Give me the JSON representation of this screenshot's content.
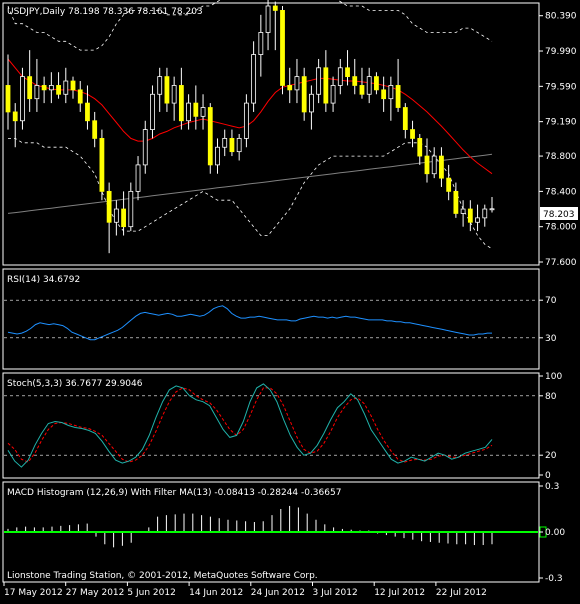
{
  "chart_data": [
    {
      "type": "candlestick",
      "title": "USDJPY,Daily  78.198 78.336 78.161 78.203",
      "symbol": "USDJPY",
      "timeframe": "Daily",
      "ohlc_header": [
        78.198,
        78.336,
        78.161,
        78.203
      ],
      "y_ticks": [
        "80.390",
        "79.990",
        "79.590",
        "79.190",
        "78.800",
        "78.400",
        "78.000",
        "77.600"
      ],
      "ylim": [
        77.6,
        80.5
      ],
      "last_price": "78.203",
      "candles": [
        [
          79.6,
          79.95,
          79.1,
          79.3
        ],
        [
          79.3,
          79.4,
          78.9,
          79.2
        ],
        [
          79.2,
          79.8,
          79.1,
          79.7
        ],
        [
          79.7,
          80.0,
          79.3,
          79.45
        ],
        [
          79.45,
          79.9,
          79.3,
          79.6
        ],
        [
          79.6,
          79.7,
          79.4,
          79.55
        ],
        [
          79.55,
          79.75,
          79.4,
          79.6
        ],
        [
          79.6,
          79.75,
          79.45,
          79.5
        ],
        [
          79.5,
          79.8,
          79.4,
          79.65
        ],
        [
          79.65,
          79.7,
          79.45,
          79.55
        ],
        [
          79.55,
          79.65,
          79.3,
          79.4
        ],
        [
          79.4,
          79.6,
          79.1,
          79.2
        ],
        [
          79.2,
          79.3,
          78.9,
          79.0
        ],
        [
          79.0,
          79.1,
          78.3,
          78.4
        ],
        [
          78.4,
          78.5,
          77.7,
          78.05
        ],
        [
          78.05,
          78.3,
          77.9,
          78.2
        ],
        [
          78.2,
          78.4,
          77.9,
          78.0
        ],
        [
          78.0,
          78.5,
          77.95,
          78.4
        ],
        [
          78.4,
          78.8,
          78.3,
          78.7
        ],
        [
          78.7,
          79.2,
          78.6,
          79.1
        ],
        [
          79.1,
          79.6,
          79.0,
          79.5
        ],
        [
          79.5,
          79.8,
          79.3,
          79.7
        ],
        [
          79.7,
          79.8,
          79.3,
          79.4
        ],
        [
          79.4,
          79.7,
          79.2,
          79.6
        ],
        [
          79.6,
          79.8,
          79.1,
          79.2
        ],
        [
          79.2,
          79.5,
          79.1,
          79.4
        ],
        [
          79.4,
          79.6,
          79.1,
          79.25
        ],
        [
          79.25,
          79.5,
          79.1,
          79.35
        ],
        [
          79.35,
          79.4,
          78.6,
          78.7
        ],
        [
          78.7,
          79.0,
          78.6,
          78.9
        ],
        [
          78.9,
          79.1,
          78.8,
          79.0
        ],
        [
          79.0,
          79.1,
          78.8,
          78.85
        ],
        [
          78.85,
          79.05,
          78.75,
          79.0
        ],
        [
          79.0,
          79.5,
          78.9,
          79.4
        ],
        [
          79.4,
          80.1,
          79.3,
          79.95
        ],
        [
          79.95,
          80.4,
          79.7,
          80.2
        ],
        [
          80.2,
          80.6,
          80.0,
          80.5
        ],
        [
          80.5,
          80.55,
          80.0,
          80.45
        ],
        [
          80.45,
          80.5,
          79.5,
          79.6
        ],
        [
          79.6,
          79.8,
          79.4,
          79.55
        ],
        [
          79.55,
          79.9,
          79.4,
          79.7
        ],
        [
          79.7,
          79.8,
          79.2,
          79.3
        ],
        [
          79.3,
          79.6,
          79.1,
          79.5
        ],
        [
          79.5,
          79.9,
          79.4,
          79.8
        ],
        [
          79.8,
          80.0,
          79.3,
          79.4
        ],
        [
          79.4,
          79.7,
          79.3,
          79.6
        ],
        [
          79.6,
          79.9,
          79.5,
          79.8
        ],
        [
          79.8,
          80.0,
          79.6,
          79.7
        ],
        [
          79.7,
          79.9,
          79.5,
          79.6
        ],
        [
          79.6,
          79.8,
          79.45,
          79.5
        ],
        [
          79.5,
          79.8,
          79.4,
          79.7
        ],
        [
          79.7,
          79.75,
          79.5,
          79.55
        ],
        [
          79.55,
          79.7,
          79.3,
          79.45
        ],
        [
          79.45,
          79.7,
          79.2,
          79.6
        ],
        [
          79.6,
          79.9,
          79.3,
          79.35
        ],
        [
          79.35,
          79.4,
          79.0,
          79.1
        ],
        [
          79.1,
          79.2,
          78.9,
          79.0
        ],
        [
          79.0,
          79.05,
          78.7,
          78.8
        ],
        [
          78.8,
          79.0,
          78.5,
          78.6
        ],
        [
          78.6,
          78.9,
          78.55,
          78.8
        ],
        [
          78.8,
          78.9,
          78.45,
          78.55
        ],
        [
          78.55,
          78.7,
          78.3,
          78.4
        ],
        [
          78.4,
          78.5,
          78.1,
          78.15
        ],
        [
          78.15,
          78.3,
          78.0,
          78.2
        ],
        [
          78.2,
          78.3,
          77.95,
          78.05
        ],
        [
          78.05,
          78.25,
          77.95,
          78.1
        ],
        [
          78.1,
          78.25,
          78.0,
          78.2
        ],
        [
          78.198,
          78.336,
          78.161,
          78.203
        ]
      ],
      "bollinger_upper": [
        80.5,
        80.3,
        80.3,
        80.25,
        80.2,
        80.2,
        80.15,
        80.1,
        80.1,
        80.05,
        80.0,
        80.0,
        80.0,
        80.05,
        80.15,
        80.3,
        80.4,
        80.45,
        80.45,
        80.45,
        80.45,
        80.45,
        80.4,
        80.4,
        80.4,
        80.4,
        80.45,
        80.5,
        80.5,
        80.55,
        80.6,
        80.6,
        80.6,
        80.6,
        80.6,
        80.65,
        80.7,
        80.75,
        80.75,
        80.75,
        80.75,
        80.75,
        80.75,
        80.7,
        80.65,
        80.6,
        80.55,
        80.5,
        80.5,
        80.5,
        80.45,
        80.45,
        80.45,
        80.45,
        80.45,
        80.4,
        80.3,
        80.25,
        80.2,
        80.2,
        80.2,
        80.2,
        80.2,
        80.25,
        80.25,
        80.2,
        80.15,
        80.1
      ],
      "bollinger_lower": [
        79.0,
        79.0,
        78.95,
        78.95,
        78.95,
        78.9,
        78.9,
        78.9,
        78.9,
        78.85,
        78.8,
        78.7,
        78.6,
        78.4,
        78.2,
        78.05,
        77.95,
        77.95,
        77.95,
        78.0,
        78.05,
        78.1,
        78.15,
        78.2,
        78.25,
        78.3,
        78.35,
        78.4,
        78.35,
        78.3,
        78.3,
        78.3,
        78.2,
        78.1,
        78.0,
        77.9,
        77.9,
        78.0,
        78.1,
        78.2,
        78.35,
        78.5,
        78.6,
        78.7,
        78.75,
        78.8,
        78.8,
        78.8,
        78.8,
        78.8,
        78.8,
        78.8,
        78.8,
        78.85,
        78.9,
        78.95,
        78.95,
        78.95,
        78.9,
        78.8,
        78.7,
        78.6,
        78.4,
        78.2,
        78.05,
        77.9,
        77.8,
        77.75
      ],
      "ma_red": [
        79.9,
        79.8,
        79.7,
        79.65,
        79.6,
        79.58,
        79.56,
        79.55,
        79.55,
        79.55,
        79.53,
        79.5,
        79.45,
        79.38,
        79.28,
        79.18,
        79.08,
        79.0,
        78.97,
        78.97,
        79.0,
        79.05,
        79.08,
        79.12,
        79.15,
        79.18,
        79.2,
        79.22,
        79.2,
        79.18,
        79.16,
        79.14,
        79.12,
        79.14,
        79.2,
        79.3,
        79.42,
        79.52,
        79.58,
        79.6,
        79.62,
        79.64,
        79.66,
        79.68,
        79.68,
        79.67,
        79.66,
        79.65,
        79.65,
        79.64,
        79.63,
        79.62,
        79.6,
        79.58,
        79.55,
        79.5,
        79.44,
        79.37,
        79.3,
        79.22,
        79.14,
        79.05,
        78.96,
        78.87,
        78.79,
        78.72,
        78.66,
        78.6
      ],
      "ma_gray": [
        78.15,
        78.16,
        78.17,
        78.18,
        78.19,
        78.2,
        78.21,
        78.22,
        78.23,
        78.24,
        78.25,
        78.26,
        78.27,
        78.28,
        78.29,
        78.3,
        78.31,
        78.32,
        78.33,
        78.34,
        78.35,
        78.36,
        78.37,
        78.38,
        78.39,
        78.4,
        78.41,
        78.42,
        78.43,
        78.44,
        78.45,
        78.46,
        78.47,
        78.48,
        78.49,
        78.5,
        78.51,
        78.52,
        78.53,
        78.54,
        78.55,
        78.56,
        78.57,
        78.58,
        78.59,
        78.6,
        78.61,
        78.62,
        78.63,
        78.64,
        78.65,
        78.66,
        78.67,
        78.68,
        78.69,
        78.7,
        78.71,
        78.72,
        78.73,
        78.74,
        78.75,
        78.76,
        78.77,
        78.78,
        78.79,
        78.8,
        78.81,
        78.82
      ]
    },
    {
      "type": "line",
      "title": "RSI(14) 34.6792",
      "y_ticks": [
        "70",
        "30"
      ],
      "levels": [
        70,
        30
      ],
      "ylim": [
        0,
        100
      ],
      "series": [
        {
          "values": [
            36,
            35,
            34,
            35,
            37,
            40,
            44,
            46,
            45,
            44,
            45,
            44,
            43,
            40,
            36,
            34,
            32,
            30,
            28,
            28,
            30,
            32,
            34,
            36,
            38,
            41,
            45,
            49,
            53,
            56,
            57,
            56,
            55,
            54,
            55,
            56,
            55,
            53,
            53,
            54,
            55,
            54,
            53,
            54,
            57,
            61,
            63,
            64,
            61,
            56,
            53,
            51,
            51,
            52,
            52,
            53,
            52,
            51,
            50,
            49,
            49,
            49,
            48,
            48,
            50,
            51,
            52,
            53,
            52,
            52,
            51,
            52,
            51,
            52,
            53,
            52,
            52,
            51,
            50,
            49,
            49,
            49,
            49,
            48,
            48,
            47,
            47,
            46,
            46,
            45,
            44,
            43,
            42,
            41,
            40,
            39,
            38,
            37,
            36,
            35,
            34,
            33,
            33,
            34,
            34,
            35,
            35
          ]
        }
      ]
    },
    {
      "type": "line",
      "title": "Stoch(5,3,3) 36.7677 29.9046",
      "y_ticks": [
        "100",
        "80",
        "20",
        "0"
      ],
      "levels": [
        80,
        20
      ],
      "ylim": [
        0,
        100
      ],
      "series": [
        {
          "values": [
            25,
            14,
            8,
            15,
            30,
            42,
            52,
            54,
            53,
            50,
            48,
            47,
            45,
            42,
            34,
            24,
            15,
            12,
            14,
            18,
            26,
            40,
            58,
            74,
            86,
            90,
            88,
            80,
            76,
            74,
            70,
            58,
            46,
            38,
            40,
            54,
            74,
            88,
            92,
            86,
            74,
            56,
            40,
            28,
            20,
            22,
            30,
            42,
            56,
            68,
            74,
            82,
            76,
            62,
            46,
            36,
            26,
            16,
            12,
            14,
            18,
            16,
            14,
            18,
            22,
            20,
            16,
            18,
            22,
            24,
            26,
            28,
            36
          ]
        },
        {
          "values": [
            32,
            26,
            16,
            13,
            22,
            35,
            46,
            52,
            53,
            52,
            50,
            48,
            47,
            44,
            40,
            32,
            24,
            16,
            13,
            15,
            20,
            30,
            44,
            60,
            74,
            84,
            88,
            86,
            80,
            76,
            73,
            66,
            56,
            46,
            40,
            46,
            60,
            76,
            88,
            88,
            82,
            70,
            54,
            38,
            26,
            22,
            24,
            32,
            44,
            58,
            68,
            76,
            78,
            72,
            60,
            46,
            34,
            24,
            16,
            13,
            15,
            16,
            15,
            16,
            19,
            20,
            18,
            18,
            20,
            22,
            24,
            26,
            30
          ]
        }
      ]
    },
    {
      "type": "bar",
      "title": "MACD Histogram (12,26,9) With Filter MA(13) -0.08413 -0.28244 -0.36657",
      "y_ticks": [
        "0.3",
        "0.00",
        "-0.3"
      ],
      "ylim": [
        -0.3,
        0.3
      ],
      "values": [
        0.02,
        0.03,
        0.035,
        0.03,
        0.03,
        0.035,
        0.04,
        0.045,
        0.05,
        0.055,
        -0.03,
        -0.08,
        -0.1,
        -0.09,
        -0.07,
        0.0,
        0.03,
        0.1,
        0.11,
        0.115,
        0.12,
        0.12,
        0.11,
        0.1,
        0.09,
        0.08,
        0.075,
        0.07,
        0.065,
        0.07,
        0.11,
        0.15,
        0.17,
        0.16,
        0.12,
        0.08,
        0.05,
        0.03,
        0.02,
        0.015,
        0.01,
        0.01,
        -0.01,
        -0.02,
        -0.03,
        -0.04,
        -0.05,
        -0.06,
        -0.065,
        -0.07,
        -0.075,
        -0.08,
        -0.08,
        -0.085,
        -0.085,
        -0.08
      ],
      "zero_line_color": "#00ff00"
    }
  ],
  "x_ticks": [
    "17 May 2012",
    "27 May 2012",
    "5 Jun 2012",
    "14 Jun 2012",
    "24 Jun 2012",
    "3 Jul 2012",
    "12 Jul 2012",
    "22 Jul 2012"
  ],
  "footer": "Lionstone Trading Station, © 2001-2012, MetaQuotes Software Corp.",
  "colors": {
    "background": "#000000",
    "grid": "#ffffff",
    "candle_up": "#ffff00",
    "candle_down": "#ffff00",
    "bollinger": "#ffffff",
    "ma_red": "#ff0000",
    "ma_gray": "#808080",
    "rsi": "#1e90ff",
    "stoch_main": "#20b2aa",
    "stoch_signal": "#ff0000",
    "macd": "#ffffff",
    "zero_line": "#00ff00"
  }
}
